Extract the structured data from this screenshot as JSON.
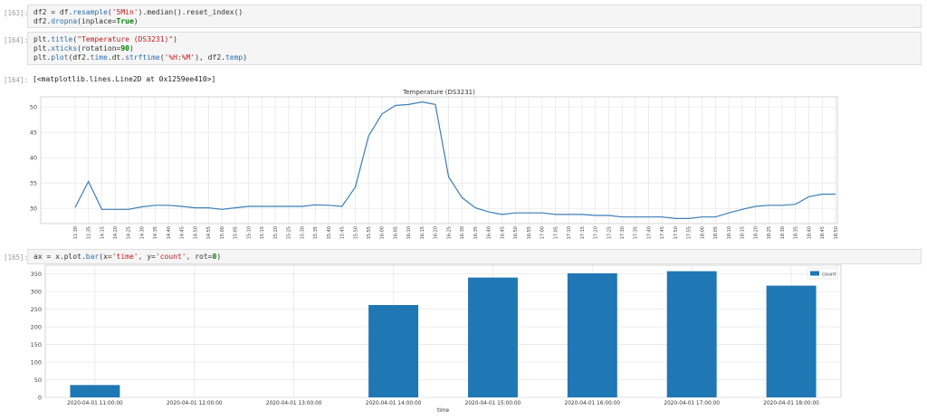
{
  "cells": [
    {
      "prompt": "[163]:",
      "lines": [
        [
          [
            "df2 = df.",
            "tk-var"
          ],
          [
            "resample",
            "tk-fn"
          ],
          [
            "(",
            "tk-var"
          ],
          [
            "'5Min'",
            "tk-str"
          ],
          [
            ").median().reset_index()",
            "tk-var"
          ]
        ],
        [
          [
            "df2.",
            "tk-var"
          ],
          [
            "dropna",
            "tk-fn"
          ],
          [
            "(inplace=",
            "tk-var"
          ],
          [
            "True",
            "tk-kw"
          ],
          [
            ")",
            "tk-var"
          ]
        ]
      ]
    },
    {
      "prompt": "[164]:",
      "lines": [
        [
          [
            "plt.",
            "tk-var"
          ],
          [
            "title",
            "tk-fn"
          ],
          [
            "(",
            "tk-var"
          ],
          [
            "\"Temperature (DS3231)\"",
            "tk-str"
          ],
          [
            ")",
            "tk-var"
          ]
        ],
        [
          [
            "plt.",
            "tk-var"
          ],
          [
            "xticks",
            "tk-fn"
          ],
          [
            "(rotation=",
            "tk-var"
          ],
          [
            "90",
            "tk-kw"
          ],
          [
            ")",
            "tk-var"
          ]
        ],
        [
          [
            "plt.",
            "tk-var"
          ],
          [
            "plot",
            "tk-fn"
          ],
          [
            "(df2.",
            "tk-var"
          ],
          [
            "time",
            "tk-fn"
          ],
          [
            ".dt.",
            "tk-var"
          ],
          [
            "strftime",
            "tk-fn"
          ],
          [
            "(",
            "tk-var"
          ],
          [
            "'%H:%M'",
            "tk-str"
          ],
          [
            "), df2.",
            "tk-var"
          ],
          [
            "temp",
            "tk-fn"
          ],
          [
            ")",
            "tk-var"
          ]
        ]
      ]
    },
    {
      "prompt": "[165]:",
      "lines": [
        [
          [
            "ax = x.plot.",
            "tk-var"
          ],
          [
            "bar",
            "tk-fn"
          ],
          [
            "(x=",
            "tk-var"
          ],
          [
            "'time'",
            "tk-str"
          ],
          [
            ", y=",
            "tk-var"
          ],
          [
            "'count'",
            "tk-str"
          ],
          [
            ", rot=",
            "tk-var"
          ],
          [
            "0",
            "tk-kw"
          ],
          [
            ")",
            "tk-var"
          ]
        ]
      ]
    }
  ],
  "output164": {
    "prompt": "[164]:",
    "text": "[<matplotlib.lines.Line2D at 0x1259ee410>]"
  },
  "chart_data": [
    {
      "type": "line",
      "title": "Temperature (DS3231)",
      "line_color": "#3b7fb8",
      "grid": true,
      "ylim": [
        27,
        52
      ],
      "yticks": [
        30,
        35,
        40,
        45,
        50
      ],
      "x": [
        "11:30",
        "11:35",
        "14:15",
        "14:20",
        "14:25",
        "14:30",
        "14:35",
        "14:40",
        "14:45",
        "14:50",
        "14:55",
        "15:00",
        "15:05",
        "15:10",
        "15:15",
        "15:20",
        "15:25",
        "15:30",
        "15:35",
        "15:40",
        "15:45",
        "15:50",
        "15:55",
        "16:00",
        "16:05",
        "16:10",
        "16:15",
        "16:20",
        "16:25",
        "16:30",
        "16:35",
        "16:40",
        "16:45",
        "16:50",
        "16:55",
        "17:00",
        "17:05",
        "17:10",
        "17:15",
        "17:20",
        "17:25",
        "17:30",
        "17:35",
        "17:40",
        "17:45",
        "17:50",
        "17:55",
        "18:00",
        "18:05",
        "18:10",
        "18:15",
        "18:20",
        "18:25",
        "18:30",
        "18:35",
        "18:40",
        "18:45",
        "18:50"
      ],
      "y": [
        30.2,
        35.3,
        29.8,
        29.8,
        29.8,
        30.3,
        30.6,
        30.6,
        30.4,
        30.1,
        30.1,
        29.8,
        30.1,
        30.4,
        30.4,
        30.4,
        30.4,
        30.4,
        30.7,
        30.6,
        30.4,
        34.2,
        44.3,
        48.6,
        50.3,
        50.5,
        51.0,
        50.5,
        36.2,
        32.1,
        30.1,
        29.3,
        28.8,
        29.1,
        29.1,
        29.1,
        28.8,
        28.8,
        28.8,
        28.6,
        28.6,
        28.3,
        28.3,
        28.3,
        28.3,
        28.0,
        28.0,
        28.3,
        28.3,
        29.1,
        29.8,
        30.4,
        30.6,
        30.6,
        30.8,
        32.3,
        32.8,
        32.8
      ]
    },
    {
      "type": "bar",
      "bar_color": "#1f77b4",
      "grid": true,
      "xlabel": "time",
      "ylim": [
        0,
        375
      ],
      "yticks": [
        0,
        50,
        100,
        150,
        200,
        250,
        300,
        350
      ],
      "legend_position": "top-right",
      "categories": [
        "2020-04-01 11:00:00",
        "2020-04-01 12:00:00",
        "2020-04-01 13:00:00",
        "2020-04-01 14:00:00",
        "2020-04-01 15:00:00",
        "2020-04-01 16:00:00",
        "2020-04-01 17:00:00",
        "2020-04-01 18:00:00"
      ],
      "series": [
        {
          "name": "count",
          "values": [
            35,
            0,
            0,
            262,
            340,
            352,
            358,
            317
          ]
        }
      ]
    }
  ]
}
